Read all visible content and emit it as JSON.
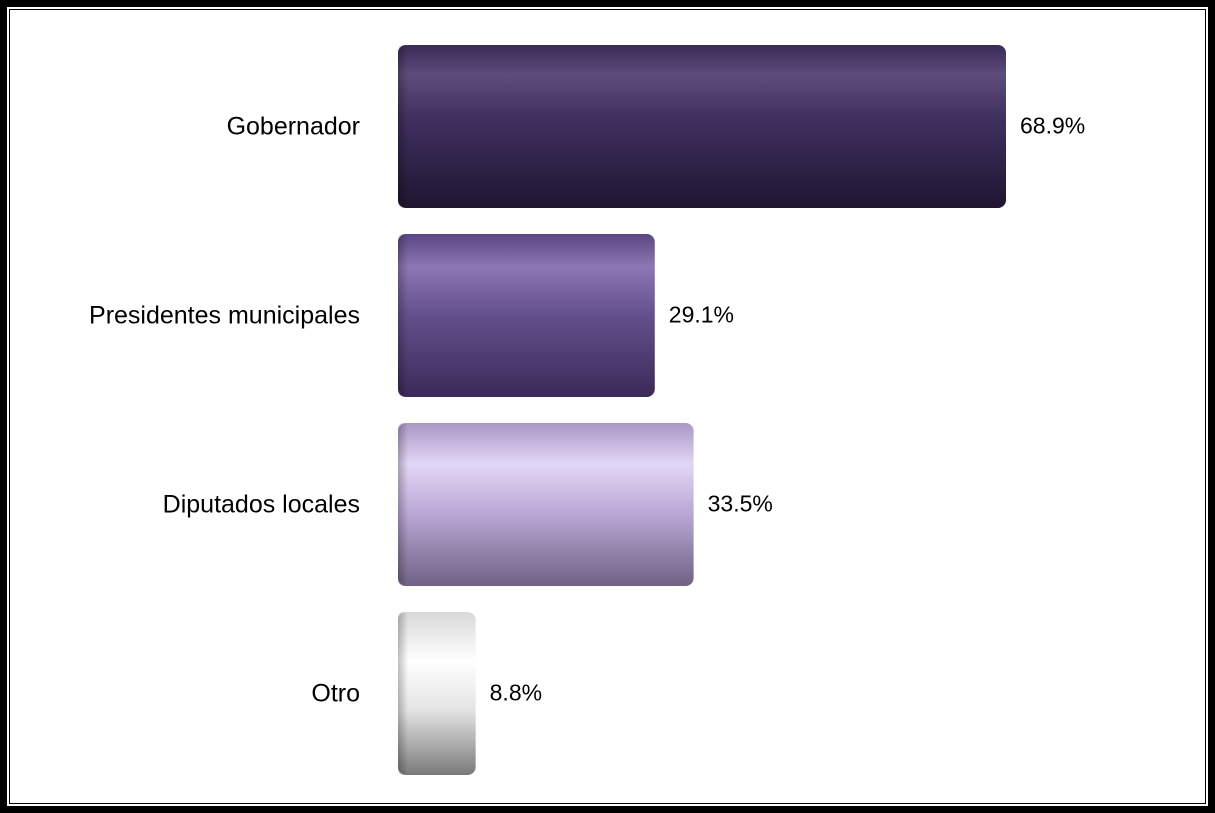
{
  "chart_data": {
    "type": "bar",
    "orientation": "horizontal",
    "categories": [
      "Gobernador",
      "Presidentes municipales",
      "Diputados locales",
      "Otro"
    ],
    "values": [
      68.9,
      29.1,
      33.5,
      8.8
    ],
    "value_labels": [
      "68.9%",
      "29.1%",
      "33.5%",
      "8.8%"
    ],
    "unit": "%",
    "colors": [
      "#3b2a57",
      "#5a4580",
      "#c7b6e0",
      "#e8e8e8"
    ],
    "grid": false,
    "legend": "none"
  }
}
